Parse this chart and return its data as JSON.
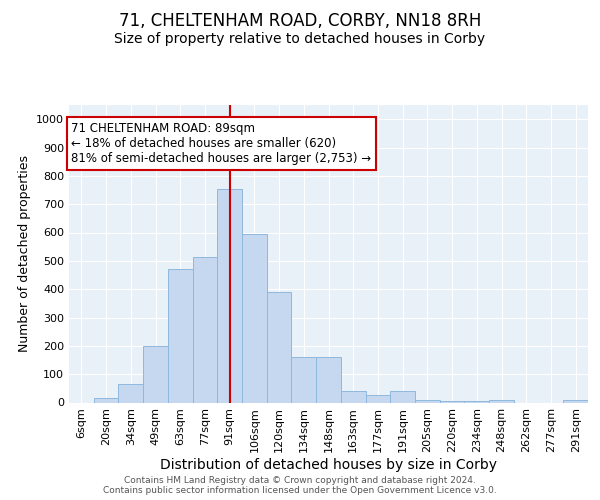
{
  "title1": "71, CHELTENHAM ROAD, CORBY, NN18 8RH",
  "title2": "Size of property relative to detached houses in Corby",
  "xlabel": "Distribution of detached houses by size in Corby",
  "ylabel": "Number of detached properties",
  "categories": [
    "6sqm",
    "20sqm",
    "34sqm",
    "49sqm",
    "63sqm",
    "77sqm",
    "91sqm",
    "106sqm",
    "120sqm",
    "134sqm",
    "148sqm",
    "163sqm",
    "177sqm",
    "191sqm",
    "205sqm",
    "220sqm",
    "234sqm",
    "248sqm",
    "262sqm",
    "277sqm",
    "291sqm"
  ],
  "values": [
    0,
    15,
    65,
    200,
    470,
    515,
    755,
    595,
    390,
    160,
    160,
    42,
    27,
    42,
    10,
    5,
    5,
    10,
    0,
    0,
    10
  ],
  "bar_color": "#c5d8f0",
  "bar_edge_color": "#8fb8de",
  "vline_x_idx": 6,
  "vline_color": "#cc0000",
  "annotation_text": "71 CHELTENHAM ROAD: 89sqm\n← 18% of detached houses are smaller (620)\n81% of semi-detached houses are larger (2,753) →",
  "annotation_box_color": "white",
  "annotation_box_edge": "#cc0000",
  "ylim": [
    0,
    1050
  ],
  "yticks": [
    0,
    100,
    200,
    300,
    400,
    500,
    600,
    700,
    800,
    900,
    1000
  ],
  "background_color": "#e8f0f8",
  "grid_color": "#ffffff",
  "footer_text": "Contains HM Land Registry data © Crown copyright and database right 2024.\nContains public sector information licensed under the Open Government Licence v3.0.",
  "title1_fontsize": 12,
  "title2_fontsize": 10,
  "xlabel_fontsize": 10,
  "ylabel_fontsize": 9,
  "tick_fontsize": 8,
  "footer_fontsize": 6.5
}
